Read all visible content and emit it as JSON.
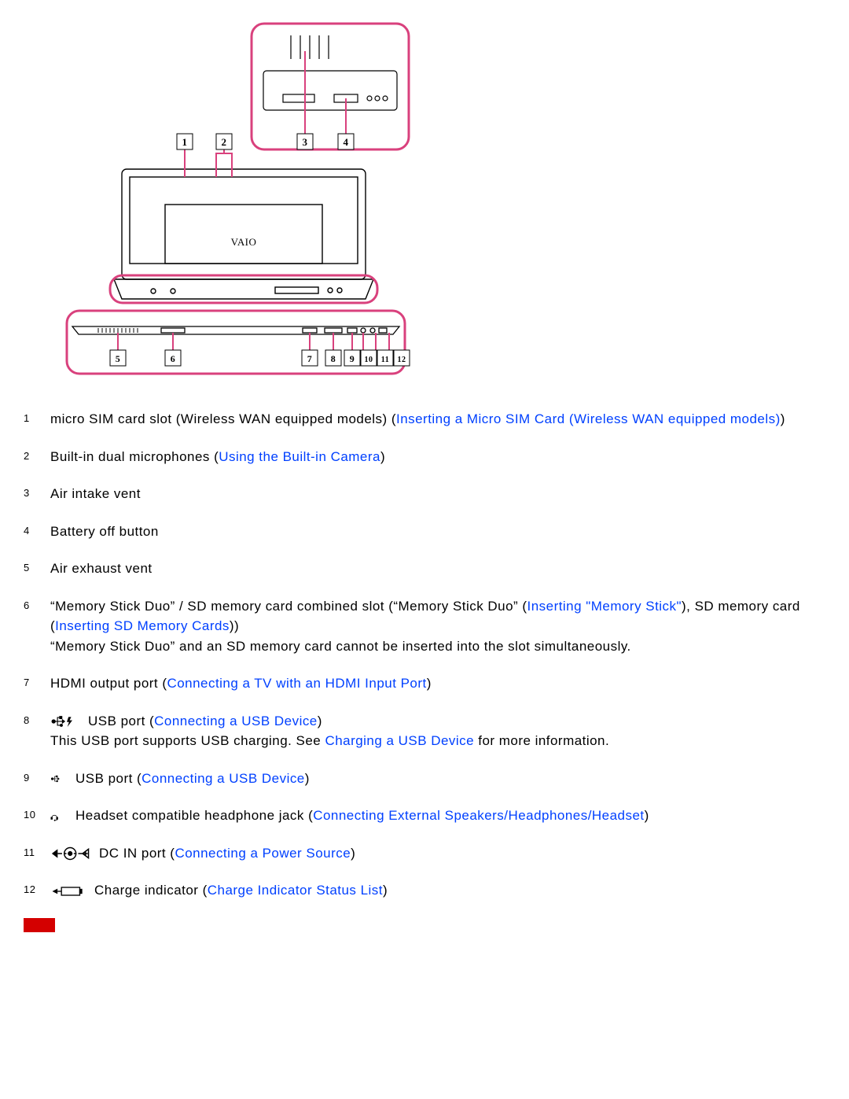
{
  "diagram": {
    "stroke": "#d9417d",
    "device_stroke": "#000000",
    "callouts": [
      "1",
      "2",
      "3",
      "4",
      "5",
      "6",
      "7",
      "8",
      "9",
      "10",
      "11",
      "12"
    ],
    "logo": "VAIO"
  },
  "legend": [
    {
      "num": "1",
      "parts": [
        {
          "t": "text",
          "v": "micro SIM card slot (Wireless WAN equipped models) ("
        },
        {
          "t": "link",
          "v": "Inserting a Micro SIM Card (Wireless WAN equipped models)"
        },
        {
          "t": "text",
          "v": ")"
        }
      ]
    },
    {
      "num": "2",
      "parts": [
        {
          "t": "text",
          "v": "Built-in dual microphones ("
        },
        {
          "t": "link",
          "v": "Using the Built-in Camera"
        },
        {
          "t": "text",
          "v": ")"
        }
      ]
    },
    {
      "num": "3",
      "parts": [
        {
          "t": "text",
          "v": "Air intake vent"
        }
      ]
    },
    {
      "num": "4",
      "parts": [
        {
          "t": "text",
          "v": "Battery off button"
        }
      ]
    },
    {
      "num": "5",
      "parts": [
        {
          "t": "text",
          "v": "Air exhaust vent"
        }
      ]
    },
    {
      "num": "6",
      "parts": [
        {
          "t": "text",
          "v": "“Memory Stick Duo” / SD memory card combined slot (“Memory Stick Duo” ("
        },
        {
          "t": "link",
          "v": "Inserting \"Memory Stick\""
        },
        {
          "t": "text",
          "v": "), SD memory card ("
        },
        {
          "t": "link",
          "v": "Inserting SD Memory Cards"
        },
        {
          "t": "text",
          "v": "))"
        },
        {
          "t": "br"
        },
        {
          "t": "text",
          "v": "“Memory Stick Duo” and an SD memory card cannot be inserted into the slot simultaneously."
        }
      ]
    },
    {
      "num": "7",
      "parts": [
        {
          "t": "text",
          "v": "HDMI output port ("
        },
        {
          "t": "link",
          "v": "Connecting a TV with an HDMI Input Port"
        },
        {
          "t": "text",
          "v": ")"
        }
      ]
    },
    {
      "num": "8",
      "icon": "usb-charge-icon",
      "parts": [
        {
          "t": "text",
          "v": "USB port ("
        },
        {
          "t": "link",
          "v": "Connecting a USB Device"
        },
        {
          "t": "text",
          "v": ")"
        },
        {
          "t": "br"
        },
        {
          "t": "text",
          "v": "This USB port supports USB charging. See "
        },
        {
          "t": "link",
          "v": "Charging a USB Device"
        },
        {
          "t": "text",
          "v": " for more information."
        }
      ]
    },
    {
      "num": "9",
      "icon": "usb-icon",
      "parts": [
        {
          "t": "text",
          "v": "USB port ("
        },
        {
          "t": "link",
          "v": "Connecting a USB Device"
        },
        {
          "t": "text",
          "v": ")"
        }
      ]
    },
    {
      "num": "10",
      "icon": "headset-icon",
      "parts": [
        {
          "t": "text",
          "v": "Headset compatible headphone jack ("
        },
        {
          "t": "link",
          "v": "Connecting External Speakers/Headphones/Headset"
        },
        {
          "t": "text",
          "v": ")"
        }
      ]
    },
    {
      "num": "11",
      "icon": "dcin-icon",
      "parts": [
        {
          "t": "text",
          "v": "DC IN port ("
        },
        {
          "t": "link",
          "v": "Connecting a Power Source"
        },
        {
          "t": "text",
          "v": ")"
        }
      ]
    },
    {
      "num": "12",
      "icon": "charge-indicator-icon",
      "parts": [
        {
          "t": "text",
          "v": "Charge indicator ("
        },
        {
          "t": "link",
          "v": "Charge Indicator Status List"
        },
        {
          "t": "text",
          "v": ")"
        }
      ]
    }
  ],
  "colors": {
    "link": "#0040ff",
    "redbar": "#d40000"
  }
}
